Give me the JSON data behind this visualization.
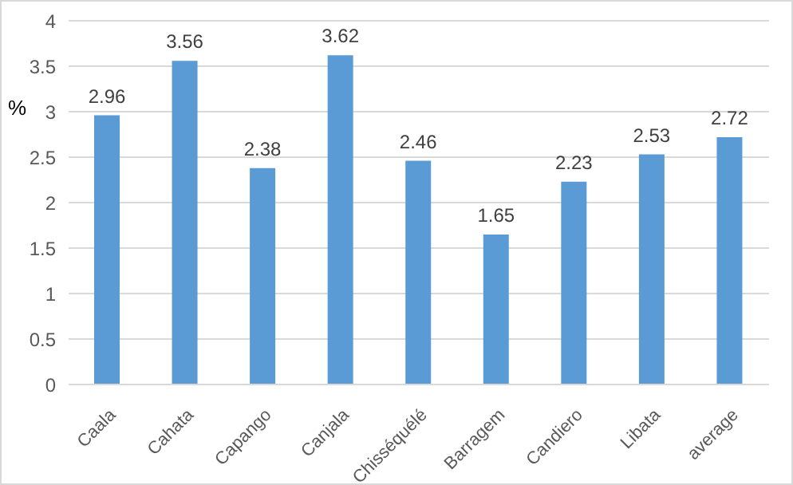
{
  "chart_data": {
    "type": "bar",
    "ylabel": "%",
    "categories": [
      "Caala",
      "Cahata",
      "Capango",
      "Canjala",
      "Chisséquélé",
      "Barragem",
      "Candiero",
      "Libata",
      "average"
    ],
    "values": [
      2.96,
      3.56,
      2.38,
      3.62,
      2.46,
      1.65,
      2.23,
      2.53,
      2.72
    ],
    "color": "#5b9bd5",
    "ylim": [
      0,
      4
    ],
    "yticks": [
      0,
      0.5,
      1,
      1.5,
      2,
      2.5,
      3,
      3.5,
      4
    ],
    "grid": "y",
    "data_labels": true
  }
}
